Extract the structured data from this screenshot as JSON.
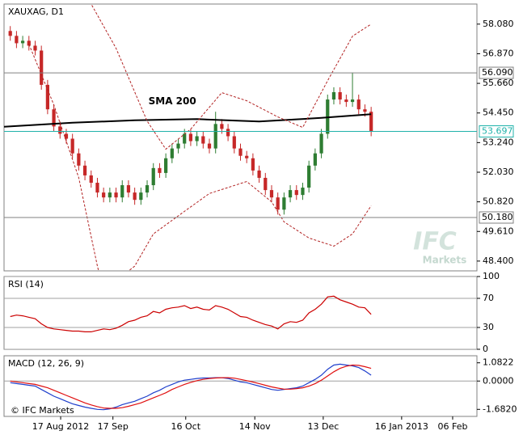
{
  "chart_data": [
    {
      "type": "candlestick",
      "title": "XAUXAG, D1",
      "xlim": [
        -1,
        75
      ],
      "ylim": [
        48.0,
        58.9
      ],
      "yticks": [
        {
          "value": 58.08,
          "label": "58.080"
        },
        {
          "value": 56.87,
          "label": "56.870"
        },
        {
          "value": 55.66,
          "label": "55.660"
        },
        {
          "value": 54.45,
          "label": "54.450"
        },
        {
          "value": 53.24,
          "label": "53.240"
        },
        {
          "value": 52.03,
          "label": "52.030"
        },
        {
          "value": 50.82,
          "label": "50.820"
        },
        {
          "value": 49.61,
          "label": "49.610"
        },
        {
          "value": 48.4,
          "label": "48.400"
        }
      ],
      "up_color": "#2e7d32",
      "down_color": "#c62828",
      "open": [
        57.8,
        57.6,
        57.3,
        57.4,
        57.2,
        57.0,
        55.6,
        54.6,
        53.9,
        53.6,
        53.4,
        52.8,
        52.3,
        51.9,
        51.6,
        51.2,
        51.0,
        51.2,
        51.0,
        51.5,
        51.2,
        50.9,
        51.2,
        51.5,
        52.2,
        52.0,
        52.6,
        53.0,
        53.2,
        53.6,
        53.3,
        53.5,
        53.2,
        53.0,
        54.0,
        53.8,
        53.5,
        53.0,
        52.7,
        52.6,
        52.1,
        51.8,
        51.3,
        51.0,
        50.5,
        51.0,
        51.3,
        51.1,
        51.4,
        52.3,
        52.8,
        53.6,
        55.0,
        55.3,
        55.0,
        54.9,
        55.0,
        54.6,
        54.5
      ],
      "high": [
        58.0,
        57.8,
        57.6,
        57.6,
        57.4,
        57.2,
        55.8,
        54.8,
        54.1,
        53.8,
        53.6,
        53.0,
        52.5,
        52.1,
        51.8,
        51.4,
        51.4,
        51.4,
        51.7,
        51.7,
        51.4,
        51.4,
        51.7,
        52.4,
        52.4,
        52.8,
        53.2,
        53.4,
        53.8,
        53.8,
        53.7,
        53.7,
        53.4,
        54.5,
        54.2,
        54.0,
        53.7,
        53.2,
        52.9,
        52.8,
        52.3,
        52.0,
        51.5,
        51.2,
        51.2,
        51.5,
        51.5,
        51.6,
        52.5,
        53.0,
        53.8,
        55.2,
        55.5,
        55.5,
        55.2,
        56.1,
        55.2,
        54.8,
        54.7
      ],
      "low": [
        57.4,
        57.1,
        57.1,
        57.0,
        56.8,
        55.4,
        54.4,
        53.7,
        53.4,
        53.2,
        52.6,
        52.1,
        51.7,
        51.4,
        51.0,
        50.8,
        50.8,
        50.8,
        50.8,
        51.0,
        50.7,
        50.7,
        51.0,
        51.3,
        51.8,
        51.8,
        52.4,
        52.8,
        53.0,
        53.1,
        53.1,
        53.0,
        52.8,
        52.8,
        53.6,
        53.3,
        52.8,
        52.5,
        52.4,
        51.9,
        51.6,
        51.1,
        50.8,
        50.3,
        50.3,
        50.8,
        50.9,
        50.9,
        51.2,
        52.1,
        52.6,
        53.4,
        54.8,
        54.8,
        54.7,
        54.7,
        54.4,
        54.3,
        53.5
      ],
      "close": [
        57.6,
        57.3,
        57.4,
        57.2,
        57.0,
        55.6,
        54.6,
        53.9,
        53.6,
        53.4,
        52.8,
        52.3,
        51.9,
        51.6,
        51.2,
        51.0,
        51.2,
        51.0,
        51.5,
        51.2,
        50.9,
        51.2,
        51.5,
        52.2,
        52.0,
        52.6,
        53.0,
        53.2,
        53.6,
        53.3,
        53.5,
        53.2,
        53.0,
        54.0,
        53.8,
        53.5,
        53.0,
        52.7,
        52.6,
        52.1,
        51.8,
        51.3,
        51.0,
        50.5,
        51.0,
        51.3,
        51.1,
        51.4,
        52.3,
        52.8,
        53.6,
        55.0,
        55.3,
        55.0,
        54.9,
        55.0,
        54.6,
        54.5,
        53.7
      ],
      "overlays": [
        {
          "name": "SMA 200",
          "color": "#000000",
          "style": "solid",
          "x": [
            -1,
            10,
            20,
            30,
            40,
            50,
            58
          ],
          "values": [
            53.89,
            54.05,
            54.15,
            54.2,
            54.1,
            54.25,
            54.4
          ]
        },
        {
          "color": "#b22222",
          "style": "dashed",
          "x": [
            11,
            13,
            17,
            22,
            25,
            29,
            34,
            38,
            43,
            47,
            51,
            55,
            58
          ],
          "values": [
            60.06,
            58.9,
            57.09,
            54.12,
            52.97,
            53.79,
            55.28,
            54.95,
            54.29,
            53.86,
            55.77,
            57.59,
            58.08
          ]
        },
        {
          "color": "#b22222",
          "style": "dashed",
          "x": [
            3,
            7,
            11,
            14,
            15,
            20,
            23,
            28,
            32,
            38,
            42,
            44,
            48,
            52,
            55,
            58
          ],
          "values": [
            57.26,
            54.78,
            51.81,
            48.19,
            47.2,
            48.19,
            49.51,
            50.43,
            51.16,
            51.65,
            50.82,
            50.0,
            49.34,
            49.01,
            49.51,
            50.66
          ]
        }
      ],
      "levels": [
        {
          "value": 56.09,
          "label": "56.090",
          "color": "#808080"
        },
        {
          "value": 50.18,
          "label": "50.180",
          "color": "#808080"
        },
        {
          "value": 53.697,
          "label": "53.697",
          "color": "#20b2aa"
        }
      ],
      "watermark": [
        "IFC",
        "Markets"
      ]
    },
    {
      "type": "line",
      "title": "RSI (14)",
      "xlim": [
        -1,
        75
      ],
      "ylim": [
        0,
        100
      ],
      "yticks": [
        0,
        30,
        70,
        100
      ],
      "grid": true,
      "series": [
        {
          "color": "#cc0000",
          "values": [
            45,
            47,
            46,
            44,
            42,
            35,
            30,
            28,
            27,
            26,
            25,
            25,
            24,
            24,
            26,
            28,
            27,
            29,
            33,
            38,
            40,
            44,
            46,
            52,
            50,
            55,
            57,
            58,
            60,
            56,
            58,
            55,
            54,
            60,
            58,
            55,
            50,
            45,
            44,
            40,
            37,
            34,
            32,
            28,
            35,
            38,
            37,
            40,
            50,
            55,
            62,
            72,
            73,
            68,
            65,
            62,
            58,
            57,
            48
          ]
        }
      ]
    },
    {
      "type": "line",
      "title": "MACD (12, 26, 9)",
      "xlim": [
        -1,
        75
      ],
      "ylim": [
        -2.1,
        1.5
      ],
      "grid": false,
      "zero_line": true,
      "yticks": [
        {
          "value": 1.0822,
          "label": "1.0822"
        },
        {
          "value": 0,
          "label": "0.0000"
        },
        {
          "value": -1.682,
          "label": "-1.6820"
        }
      ],
      "xticks": [
        {
          "value": 8.1,
          "label": "17 Aug 2012"
        },
        {
          "value": 16.5,
          "label": "17 Sep"
        },
        {
          "value": 28.2,
          "label": "16 Oct"
        },
        {
          "value": 39.3,
          "label": "14 Nov"
        },
        {
          "value": 50.3,
          "label": "13 Dec"
        },
        {
          "value": 62.9,
          "label": "16 Jan 2013"
        },
        {
          "value": 71.1,
          "label": "06 Feb"
        }
      ],
      "series": [
        {
          "color": "#1f3fcc",
          "values": [
            -0.1,
            -0.15,
            -0.2,
            -0.25,
            -0.3,
            -0.5,
            -0.7,
            -0.9,
            -1.05,
            -1.2,
            -1.35,
            -1.45,
            -1.55,
            -1.62,
            -1.68,
            -1.7,
            -1.65,
            -1.55,
            -1.4,
            -1.3,
            -1.2,
            -1.05,
            -0.9,
            -0.7,
            -0.55,
            -0.35,
            -0.2,
            -0.05,
            0.05,
            0.1,
            0.15,
            0.18,
            0.18,
            0.2,
            0.2,
            0.15,
            0.05,
            -0.05,
            -0.1,
            -0.2,
            -0.3,
            -0.4,
            -0.5,
            -0.55,
            -0.5,
            -0.45,
            -0.4,
            -0.3,
            -0.1,
            0.1,
            0.35,
            0.7,
            0.95,
            1.0,
            0.95,
            0.9,
            0.8,
            0.6,
            0.35
          ]
        },
        {
          "color": "#e01010",
          "values": [
            0.0,
            -0.05,
            -0.1,
            -0.15,
            -0.2,
            -0.3,
            -0.4,
            -0.55,
            -0.7,
            -0.85,
            -1.0,
            -1.15,
            -1.3,
            -1.42,
            -1.52,
            -1.6,
            -1.62,
            -1.62,
            -1.58,
            -1.5,
            -1.4,
            -1.3,
            -1.15,
            -1.0,
            -0.85,
            -0.7,
            -0.5,
            -0.35,
            -0.2,
            -0.08,
            0.02,
            0.1,
            0.15,
            0.18,
            0.2,
            0.2,
            0.17,
            0.1,
            0.02,
            -0.06,
            -0.15,
            -0.25,
            -0.35,
            -0.42,
            -0.48,
            -0.48,
            -0.45,
            -0.4,
            -0.3,
            -0.15,
            0.05,
            0.3,
            0.55,
            0.75,
            0.88,
            0.95,
            0.93,
            0.85,
            0.75
          ]
        }
      ],
      "copyright": "© IFC Markets"
    }
  ]
}
